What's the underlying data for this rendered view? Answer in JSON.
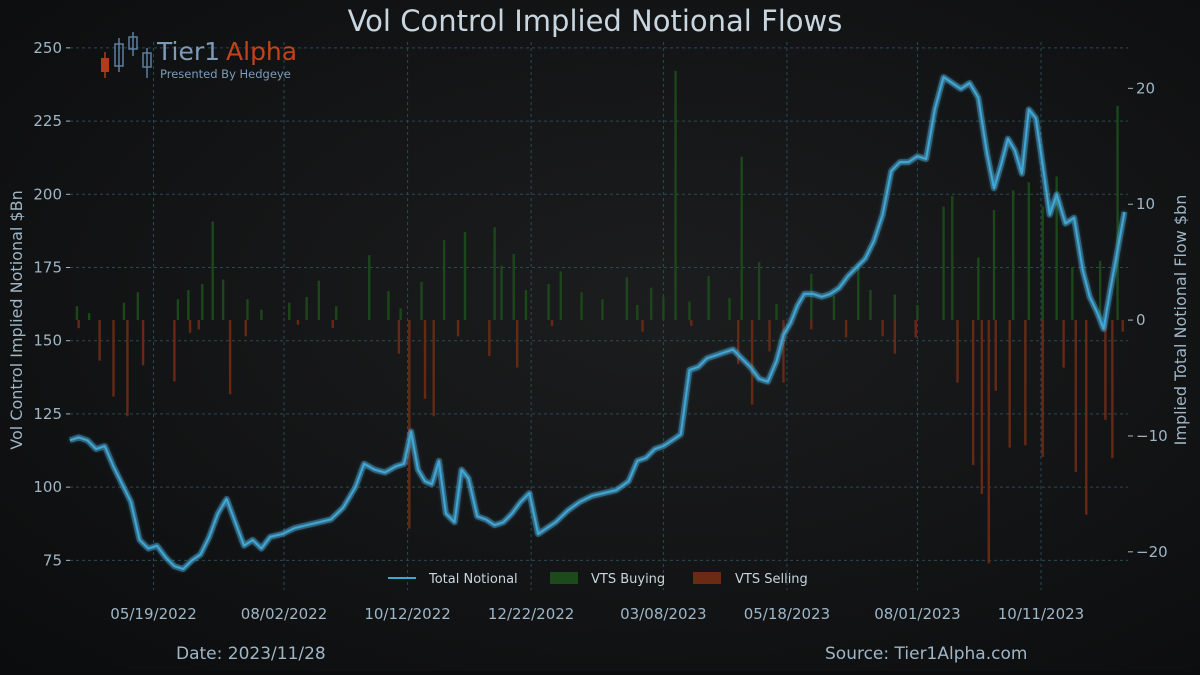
{
  "chart_data": {
    "type": "line",
    "title": "Vol Control Implied Notional Flows",
    "ylabel_left": "Vol Control Implied Notional $Bn",
    "ylabel_right": "Implied Total Notional Flow $bn",
    "ylim_left": [
      70,
      252
    ],
    "ylim_right": [
      -22,
      24
    ],
    "yticks_left": [
      75,
      100,
      125,
      150,
      175,
      200,
      225,
      250
    ],
    "yticks_right": [
      -20,
      -10,
      0,
      10,
      20
    ],
    "x_start": "2022-04-01",
    "x_end": "2023-11-30",
    "xticks": [
      "2022-05-19",
      "2022-08-02",
      "2022-10-12",
      "2022-12-22",
      "2023-03-08",
      "2023-05-18",
      "2023-08-01",
      "2023-10-11"
    ],
    "xtick_labels": [
      "05/19/2022",
      "08/02/2022",
      "10/12/2022",
      "12/22/2022",
      "03/08/2023",
      "05/18/2023",
      "08/01/2023",
      "10/11/2023"
    ],
    "grid": true,
    "legend_position": "bottom-center",
    "series": [
      {
        "name": "Total Notional",
        "type": "line",
        "axis": "left",
        "color": "#3fa7d6",
        "points": [
          [
            "2022-04-01",
            116
          ],
          [
            "2022-04-06",
            117
          ],
          [
            "2022-04-11",
            116
          ],
          [
            "2022-04-16",
            113
          ],
          [
            "2022-04-21",
            114
          ],
          [
            "2022-04-26",
            107
          ],
          [
            "2022-05-01",
            101
          ],
          [
            "2022-05-06",
            95
          ],
          [
            "2022-05-11",
            82
          ],
          [
            "2022-05-16",
            79
          ],
          [
            "2022-05-21",
            80
          ],
          [
            "2022-05-26",
            76
          ],
          [
            "2022-05-31",
            73
          ],
          [
            "2022-06-05",
            72
          ],
          [
            "2022-06-10",
            75
          ],
          [
            "2022-06-15",
            77
          ],
          [
            "2022-06-20",
            83
          ],
          [
            "2022-06-25",
            91
          ],
          [
            "2022-06-30",
            96
          ],
          [
            "2022-07-05",
            88
          ],
          [
            "2022-07-10",
            80
          ],
          [
            "2022-07-15",
            82
          ],
          [
            "2022-07-20",
            79
          ],
          [
            "2022-07-25",
            83
          ],
          [
            "2022-08-01",
            84
          ],
          [
            "2022-08-08",
            86
          ],
          [
            "2022-08-15",
            87
          ],
          [
            "2022-08-22",
            88
          ],
          [
            "2022-08-29",
            89
          ],
          [
            "2022-09-05",
            93
          ],
          [
            "2022-09-12",
            100
          ],
          [
            "2022-09-17",
            108
          ],
          [
            "2022-09-23",
            106
          ],
          [
            "2022-09-29",
            105
          ],
          [
            "2022-10-05",
            107
          ],
          [
            "2022-10-10",
            108
          ],
          [
            "2022-10-14",
            119
          ],
          [
            "2022-10-18",
            106
          ],
          [
            "2022-10-22",
            102
          ],
          [
            "2022-10-26",
            101
          ],
          [
            "2022-10-30",
            109
          ],
          [
            "2022-11-03",
            91
          ],
          [
            "2022-11-08",
            88
          ],
          [
            "2022-11-12",
            106
          ],
          [
            "2022-11-16",
            103
          ],
          [
            "2022-11-21",
            90
          ],
          [
            "2022-11-26",
            89
          ],
          [
            "2022-12-01",
            87
          ],
          [
            "2022-12-06",
            88
          ],
          [
            "2022-12-11",
            91
          ],
          [
            "2022-12-16",
            95
          ],
          [
            "2022-12-21",
            98
          ],
          [
            "2022-12-26",
            84
          ],
          [
            "2022-12-31",
            86
          ],
          [
            "2023-01-05",
            88
          ],
          [
            "2023-01-12",
            92
          ],
          [
            "2023-01-19",
            95
          ],
          [
            "2023-01-26",
            97
          ],
          [
            "2023-02-02",
            98
          ],
          [
            "2023-02-09",
            99
          ],
          [
            "2023-02-16",
            102
          ],
          [
            "2023-02-21",
            109
          ],
          [
            "2023-02-26",
            110
          ],
          [
            "2023-03-03",
            113
          ],
          [
            "2023-03-08",
            114
          ],
          [
            "2023-03-13",
            116
          ],
          [
            "2023-03-18",
            118
          ],
          [
            "2023-03-23",
            140
          ],
          [
            "2023-03-28",
            141
          ],
          [
            "2023-04-02",
            144
          ],
          [
            "2023-04-07",
            145
          ],
          [
            "2023-04-12",
            146
          ],
          [
            "2023-04-17",
            147
          ],
          [
            "2023-04-22",
            144
          ],
          [
            "2023-04-27",
            141
          ],
          [
            "2023-05-02",
            137
          ],
          [
            "2023-05-07",
            136
          ],
          [
            "2023-05-12",
            143
          ],
          [
            "2023-05-16",
            152
          ],
          [
            "2023-05-20",
            156
          ],
          [
            "2023-05-24",
            162
          ],
          [
            "2023-05-28",
            166
          ],
          [
            "2023-06-02",
            166
          ],
          [
            "2023-06-07",
            165
          ],
          [
            "2023-06-12",
            166
          ],
          [
            "2023-06-17",
            168
          ],
          [
            "2023-06-22",
            172
          ],
          [
            "2023-06-27",
            175
          ],
          [
            "2023-07-02",
            178
          ],
          [
            "2023-07-07",
            184
          ],
          [
            "2023-07-12",
            193
          ],
          [
            "2023-07-17",
            208
          ],
          [
            "2023-07-22",
            211
          ],
          [
            "2023-07-27",
            211
          ],
          [
            "2023-08-01",
            213
          ],
          [
            "2023-08-06",
            212
          ],
          [
            "2023-08-11",
            229
          ],
          [
            "2023-08-16",
            240
          ],
          [
            "2023-08-21",
            238
          ],
          [
            "2023-08-26",
            236
          ],
          [
            "2023-08-31",
            238
          ],
          [
            "2023-09-05",
            233
          ],
          [
            "2023-09-10",
            214
          ],
          [
            "2023-09-14",
            202
          ],
          [
            "2023-09-18",
            210
          ],
          [
            "2023-09-22",
            219
          ],
          [
            "2023-09-26",
            215
          ],
          [
            "2023-09-30",
            207
          ],
          [
            "2023-10-04",
            229
          ],
          [
            "2023-10-08",
            226
          ],
          [
            "2023-10-12",
            210
          ],
          [
            "2023-10-16",
            193
          ],
          [
            "2023-10-20",
            200
          ],
          [
            "2023-10-25",
            190
          ],
          [
            "2023-10-30",
            192
          ],
          [
            "2023-11-04",
            174
          ],
          [
            "2023-11-08",
            165
          ],
          [
            "2023-11-12",
            160
          ],
          [
            "2023-11-16",
            154
          ],
          [
            "2023-11-20",
            168
          ],
          [
            "2023-11-24",
            181
          ],
          [
            "2023-11-28",
            194
          ]
        ]
      },
      {
        "name": "VTS Buying",
        "type": "bar",
        "axis": "right",
        "color": "#1c4a1a",
        "points": [
          [
            "2022-04-05",
            1.2
          ],
          [
            "2022-04-12",
            0.6
          ],
          [
            "2022-05-02",
            1.5
          ],
          [
            "2022-05-10",
            2.4
          ],
          [
            "2022-06-02",
            1.8
          ],
          [
            "2022-06-08",
            2.6
          ],
          [
            "2022-06-16",
            3.1
          ],
          [
            "2022-06-22",
            8.5
          ],
          [
            "2022-06-28",
            3.5
          ],
          [
            "2022-07-12",
            1.8
          ],
          [
            "2022-07-20",
            0.9
          ],
          [
            "2022-08-05",
            1.5
          ],
          [
            "2022-08-15",
            2.0
          ],
          [
            "2022-08-22",
            3.4
          ],
          [
            "2022-09-01",
            1.2
          ],
          [
            "2022-09-20",
            5.6
          ],
          [
            "2022-10-01",
            2.5
          ],
          [
            "2022-10-08",
            1.0
          ],
          [
            "2022-10-20",
            3.3
          ],
          [
            "2022-11-02",
            6.9
          ],
          [
            "2022-11-14",
            7.6
          ],
          [
            "2022-12-01",
            8.0
          ],
          [
            "2022-12-05",
            4.7
          ],
          [
            "2022-12-12",
            5.7
          ],
          [
            "2022-12-19",
            2.6
          ],
          [
            "2023-01-01",
            3.1
          ],
          [
            "2023-01-08",
            4.2
          ],
          [
            "2023-01-20",
            2.4
          ],
          [
            "2023-02-01",
            1.8
          ],
          [
            "2023-02-15",
            3.7
          ],
          [
            "2023-02-21",
            1.3
          ],
          [
            "2023-03-01",
            2.8
          ],
          [
            "2023-03-08",
            2.0
          ],
          [
            "2023-03-15",
            21.5
          ],
          [
            "2023-03-23",
            1.6
          ],
          [
            "2023-04-03",
            3.8
          ],
          [
            "2023-04-15",
            1.9
          ],
          [
            "2023-04-22",
            14.1
          ],
          [
            "2023-05-02",
            5.0
          ],
          [
            "2023-05-12",
            1.4
          ],
          [
            "2023-06-01",
            4.0
          ],
          [
            "2023-06-14",
            2.1
          ],
          [
            "2023-06-28",
            4.9
          ],
          [
            "2023-07-05",
            2.6
          ],
          [
            "2023-07-19",
            2.2
          ],
          [
            "2023-08-01",
            1.3
          ],
          [
            "2023-08-16",
            9.8
          ],
          [
            "2023-08-21",
            10.7
          ],
          [
            "2023-09-05",
            5.4
          ],
          [
            "2023-09-14",
            9.5
          ],
          [
            "2023-09-25",
            11.2
          ],
          [
            "2023-10-04",
            11.9
          ],
          [
            "2023-10-12",
            9.8
          ],
          [
            "2023-10-20",
            12.4
          ],
          [
            "2023-10-29",
            4.6
          ],
          [
            "2023-11-14",
            5.1
          ],
          [
            "2023-11-24",
            18.5
          ]
        ]
      },
      {
        "name": "VTS Selling",
        "type": "bar",
        "axis": "right",
        "color": "#6b2a14",
        "points": [
          [
            "2022-04-06",
            -0.7
          ],
          [
            "2022-04-18",
            -3.5
          ],
          [
            "2022-04-26",
            -6.6
          ],
          [
            "2022-05-04",
            -8.3
          ],
          [
            "2022-05-13",
            -3.9
          ],
          [
            "2022-05-31",
            -5.3
          ],
          [
            "2022-06-09",
            -1.1
          ],
          [
            "2022-06-14",
            -0.8
          ],
          [
            "2022-07-02",
            -6.4
          ],
          [
            "2022-07-11",
            -1.4
          ],
          [
            "2022-08-10",
            -0.4
          ],
          [
            "2022-08-30",
            -0.7
          ],
          [
            "2022-10-07",
            -2.9
          ],
          [
            "2022-10-13",
            -18.0
          ],
          [
            "2022-10-22",
            -6.8
          ],
          [
            "2022-10-27",
            -8.3
          ],
          [
            "2022-11-10",
            -1.4
          ],
          [
            "2022-11-28",
            -3.1
          ],
          [
            "2022-12-14",
            -4.1
          ],
          [
            "2023-01-03",
            -0.5
          ],
          [
            "2023-02-24",
            -1.0
          ],
          [
            "2023-03-24",
            -0.5
          ],
          [
            "2023-04-20",
            -3.8
          ],
          [
            "2023-04-28",
            -7.3
          ],
          [
            "2023-05-08",
            -2.7
          ],
          [
            "2023-05-16",
            -5.4
          ],
          [
            "2023-06-01",
            -0.8
          ],
          [
            "2023-06-21",
            -1.5
          ],
          [
            "2023-07-12",
            -1.4
          ],
          [
            "2023-07-19",
            -2.9
          ],
          [
            "2023-07-31",
            -1.5
          ],
          [
            "2023-08-24",
            -5.4
          ],
          [
            "2023-09-02",
            -12.5
          ],
          [
            "2023-09-07",
            -15.0
          ],
          [
            "2023-09-11",
            -21.0
          ],
          [
            "2023-09-15",
            -6.1
          ],
          [
            "2023-09-23",
            -11.0
          ],
          [
            "2023-10-02",
            -10.8
          ],
          [
            "2023-10-12",
            -11.8
          ],
          [
            "2023-10-24",
            -4.1
          ],
          [
            "2023-10-31",
            -13.1
          ],
          [
            "2023-11-06",
            -16.8
          ],
          [
            "2023-11-17",
            -8.6
          ],
          [
            "2023-11-21",
            -11.9
          ],
          [
            "2023-11-27",
            -1.0
          ]
        ]
      }
    ]
  },
  "legend": {
    "items": [
      {
        "label": "Total Notional",
        "color": "#3fa7d6",
        "kind": "line"
      },
      {
        "label": "VTS Buying",
        "color": "#1c4a1a",
        "kind": "patch"
      },
      {
        "label": "VTS Selling",
        "color": "#6b2a14",
        "kind": "patch"
      }
    ]
  },
  "logo": {
    "text_main": "Tier1",
    "text_accent": "Alpha",
    "tagline": "Presented By Hedgeye",
    "icon": "candlestick-icon"
  },
  "footer": {
    "date": "Date: 2023/11/28",
    "source": "Source: Tier1Alpha.com"
  }
}
